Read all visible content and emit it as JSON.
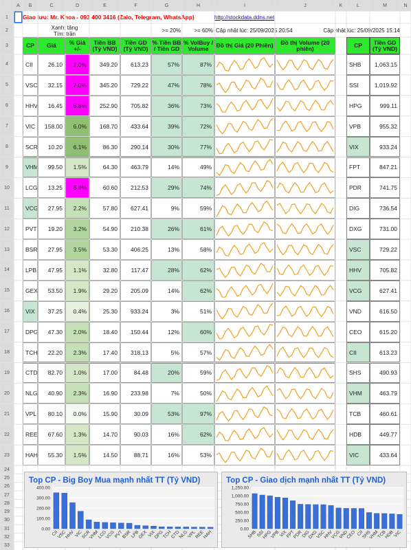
{
  "sheet": {
    "column_letters": [
      "A",
      "B",
      "C",
      "D",
      "E",
      "F",
      "G",
      "H",
      "I",
      "J",
      "K",
      "L",
      "M",
      "N"
    ],
    "row_numbers": [
      "1",
      "2",
      "3",
      "4",
      "5",
      "6",
      "7",
      "8",
      "9",
      "10",
      "11",
      "12",
      "13",
      "14",
      "15",
      "16",
      "17",
      "18",
      "19",
      "20",
      "21",
      "22",
      "23",
      "24",
      "25",
      "26",
      "27",
      "28",
      "29",
      "30",
      "31",
      "32",
      "33"
    ]
  },
  "header": {
    "title": "Giao lưu: Mr. Khoa - 093 400 3416 (Zalo, Telegram, WhatsApp)",
    "link": "http://stockdata.ddns.net",
    "legend_up": "Xanh: tăng",
    "legend_ceiling": "Tím: trần",
    "threshold_bb": ">= 20%",
    "threshold_vol": ">= 60%",
    "updated_left": "Cập nhật lúc: 25/09/2025 20:54",
    "updated_right": "Cập nhật lúc: 25/09/2025 15:14"
  },
  "table": {
    "headers": [
      "CP",
      "Giá",
      "% Giá +/-",
      "Tiền BB (Tỷ VND)",
      "Tiền GD (Tỷ VND)",
      "% Tiền BB / Tiền GD",
      "% VolBuy / Volume",
      "Đồ thị Giá (20 Phiên)",
      "Đồ thị Volume (20 phiên)"
    ],
    "rows": [
      [
        "CII",
        "26.10",
        "7.0%",
        "349.20",
        "613.23",
        "57%",
        "87%"
      ],
      [
        "VSC",
        "32.15",
        "7.0%",
        "345.20",
        "729.22",
        "47%",
        "78%"
      ],
      [
        "HHV",
        "16.45",
        "6.8%",
        "252.90",
        "705.82",
        "36%",
        "73%"
      ],
      [
        "VIC",
        "158.00",
        "6.0%",
        "168.70",
        "433.64",
        "39%",
        "72%"
      ],
      [
        "SCR",
        "10.20",
        "6.1%",
        "86.30",
        "290.14",
        "30%",
        "77%"
      ],
      [
        "VHM",
        "99.50",
        "1.5%",
        "64.30",
        "463.79",
        "14%",
        "49%"
      ],
      [
        "LCG",
        "13.25",
        "6.9%",
        "60.60",
        "212.53",
        "29%",
        "74%"
      ],
      [
        "VCG",
        "27.95",
        "2.2%",
        "57.80",
        "627.41",
        "9%",
        "59%"
      ],
      [
        "PVT",
        "19.20",
        "3.2%",
        "54.90",
        "210.38",
        "26%",
        "61%"
      ],
      [
        "BSR",
        "27.95",
        "3.5%",
        "53.30",
        "406.25",
        "13%",
        "58%"
      ],
      [
        "LPB",
        "47.95",
        "1.1%",
        "32.80",
        "117.47",
        "28%",
        "62%"
      ],
      [
        "GEX",
        "53.50",
        "1.9%",
        "29.20",
        "205.09",
        "14%",
        "62%"
      ],
      [
        "VIX",
        "37.25",
        "0.4%",
        "25.30",
        "933.24",
        "3%",
        "51%"
      ],
      [
        "DPG",
        "47.30",
        "2.0%",
        "18.40",
        "150.44",
        "12%",
        "60%"
      ],
      [
        "TCH",
        "22.20",
        "2.3%",
        "17.40",
        "318.13",
        "5%",
        "57%"
      ],
      [
        "CTD",
        "82.70",
        "1.0%",
        "17.00",
        "84.48",
        "20%",
        "59%"
      ],
      [
        "NLG",
        "40.90",
        "2.3%",
        "16.90",
        "233.98",
        "7%",
        "50%"
      ],
      [
        "VPL",
        "80.10",
        "0.0%",
        "15.90",
        "30.09",
        "53%",
        "97%"
      ],
      [
        "REE",
        "67.60",
        "1.3%",
        "14.70",
        "90.03",
        "16%",
        "62%"
      ],
      [
        "HAH",
        "55.30",
        "1.5%",
        "14.50",
        "88.71",
        "16%",
        "53%"
      ]
    ],
    "fills": [
      [
        "#ff00ff",
        "#c6e6d2",
        "#c6e6d2"
      ],
      [
        "#ff00ff",
        "#c6e6d2",
        "#c6e6d2"
      ],
      [
        "#ff00ff",
        "#c6e6d2",
        "#c6e6d2"
      ],
      [
        "#8fbf73",
        "#c6e6d2",
        "#c6e6d2"
      ],
      [
        "#8fbf73",
        "#c6e6d2",
        "#c6e6d2"
      ],
      [
        "#d4e8c8",
        null,
        null
      ],
      [
        "#ff00ff",
        "#c6e6d2",
        "#c6e6d2"
      ],
      [
        "#c5e0b6",
        null,
        null
      ],
      [
        "#b3d69f",
        "#c6e6d2",
        "#c6e6d2"
      ],
      [
        "#b3d69f",
        null,
        null
      ],
      [
        "#d4e8c8",
        "#c6e6d2",
        "#c6e6d2"
      ],
      [
        "#d4e8c8",
        null,
        "#c6e6d2"
      ],
      [
        "#e6f2df",
        null,
        null
      ],
      [
        "#c5e0b6",
        null,
        "#c6e6d2"
      ],
      [
        "#c5e0b6",
        null,
        null
      ],
      [
        "#d4e8c8",
        "#c6e6d2",
        null
      ],
      [
        "#c5e0b6",
        null,
        null
      ],
      [
        "#f3f9f0",
        "#c6e6d2",
        "#c6e6d2"
      ],
      [
        "#d4e8c8",
        null,
        "#c6e6d2"
      ],
      [
        "#d4e8c8",
        null,
        null
      ]
    ],
    "cp_fills": [
      null,
      null,
      null,
      null,
      null,
      "#c6e6d2",
      null,
      "#c6e6d2",
      null,
      null,
      null,
      null,
      "#c6e6d2",
      null,
      null,
      null,
      null,
      null,
      null,
      null
    ]
  },
  "right_table": {
    "headers": [
      "CP",
      "Tiền GD (Tỷ VND)"
    ],
    "rows": [
      [
        "SHB",
        "1,063.15"
      ],
      [
        "SSI",
        "1,019.92"
      ],
      [
        "HPG",
        "999.11"
      ],
      [
        "VPB",
        "955.32"
      ],
      [
        "VIX",
        "933.24"
      ],
      [
        "FPT",
        "847.21"
      ],
      [
        "PDR",
        "741.75"
      ],
      [
        "DIG",
        "736.54"
      ],
      [
        "DXG",
        "731.00"
      ],
      [
        "VSC",
        "729.22"
      ],
      [
        "HHV",
        "705.82"
      ],
      [
        "VCG",
        "627.41"
      ],
      [
        "VND",
        "616.50"
      ],
      [
        "CEO",
        "615.20"
      ],
      [
        "CII",
        "613.23"
      ],
      [
        "SHS",
        "490.93"
      ],
      [
        "VHM",
        "463.79"
      ],
      [
        "TCB",
        "460.61"
      ],
      [
        "HDB",
        "449.77"
      ],
      [
        "VIC",
        "433.64"
      ]
    ],
    "cp_fills": [
      null,
      null,
      null,
      null,
      "#c6e6d2",
      null,
      null,
      null,
      null,
      "#c6e6d2",
      "#c6e6d2",
      "#c6e6d2",
      null,
      null,
      "#c6e6d2",
      null,
      "#c6e6d2",
      null,
      null,
      "#c6e6d2"
    ]
  },
  "chart_data": [
    {
      "type": "bar",
      "title": "Top CP - Big Boy Mua mạnh nhất TT (Tỷ VND)",
      "color": "#3a6fd8",
      "grid": true,
      "categories": [
        "CII",
        "VSC",
        "HHV",
        "VIC",
        "SCR",
        "VHM",
        "LCG",
        "VCG",
        "PVT",
        "BSR",
        "LPB",
        "GEX",
        "VIX",
        "DPG",
        "TCH",
        "CTD",
        "NLG",
        "VPL",
        "REE",
        "HAH"
      ],
      "values": [
        349.2,
        345.2,
        252.9,
        168.7,
        86.3,
        64.3,
        60.6,
        57.8,
        54.9,
        53.3,
        32.8,
        29.2,
        25.3,
        18.4,
        17.4,
        17,
        16.9,
        15.9,
        14.7,
        14.5
      ],
      "ylim": [
        0,
        400
      ],
      "yticks": [
        {
          "value": 0,
          "label": "0.00"
        },
        {
          "value": 100,
          "label": "100.00"
        },
        {
          "value": 200,
          "label": "200.00"
        },
        {
          "value": 300,
          "label": "300.00"
        },
        {
          "value": 400,
          "label": "400.00"
        }
      ]
    },
    {
      "type": "bar",
      "title": "Top CP - Giao dịch mạnh nhất TT (Tỷ VND)",
      "color": "#3a6fd8",
      "grid": true,
      "categories": [
        "SHB",
        "SSI",
        "HPG",
        "VPB",
        "VIX",
        "FPT",
        "PDR",
        "DIG",
        "DXG",
        "VSC",
        "HHV",
        "VCG",
        "VND",
        "CEO",
        "CII",
        "SHS",
        "VHM",
        "TCB",
        "HDB",
        "VIC"
      ],
      "values": [
        1063.15,
        1019.92,
        999.11,
        955.32,
        933.24,
        847.21,
        741.75,
        736.54,
        731,
        729.22,
        705.82,
        627.41,
        616.5,
        615.2,
        613.23,
        490.93,
        463.79,
        460.61,
        449.77,
        433.64
      ],
      "ylim": [
        0,
        1250
      ],
      "yticks": [
        {
          "value": 0,
          "label": "0.00"
        },
        {
          "value": 250,
          "label": "250.00"
        },
        {
          "value": 500,
          "label": "500.00"
        },
        {
          "value": 750,
          "label": "750.00"
        },
        {
          "value": 1000,
          "label": "1,000.00"
        },
        {
          "value": 1250,
          "label": "1,250.00"
        }
      ]
    }
  ]
}
